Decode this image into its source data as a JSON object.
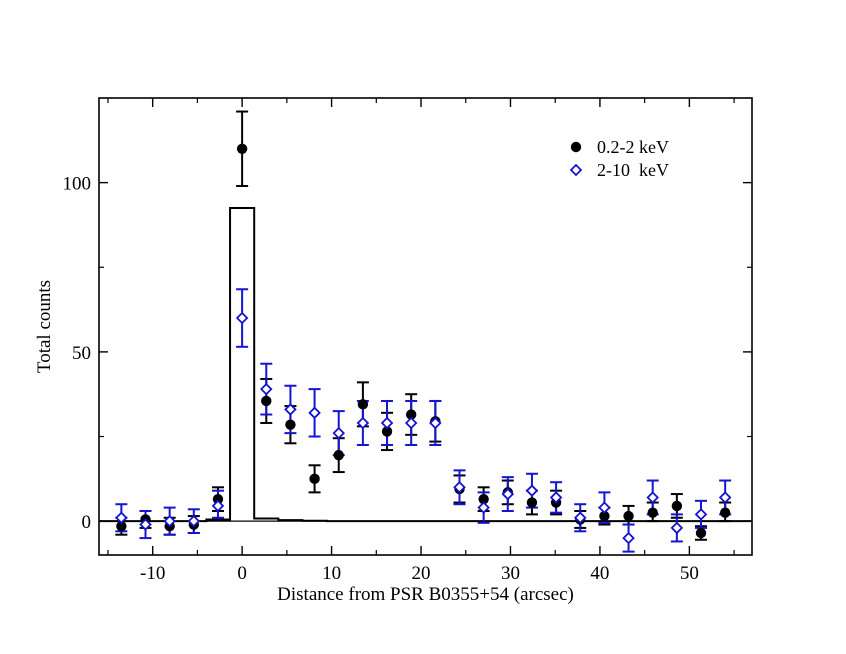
{
  "chart_data": {
    "type": "scatter",
    "title": "",
    "xlabel": "Distance from PSR B0355+54 (arcsec)",
    "ylabel": "Total counts",
    "xlim": [
      -16,
      57
    ],
    "ylim": [
      -10,
      125
    ],
    "xticks": [
      -10,
      0,
      10,
      20,
      30,
      40,
      50
    ],
    "yticks": [
      0,
      50,
      100
    ],
    "xtick_labels": [
      "-10",
      "0",
      "10",
      "20",
      "30",
      "40",
      "50"
    ],
    "ytick_labels": [
      "0",
      "50",
      "100"
    ],
    "legend_position": "top-right",
    "series": [
      {
        "name": "0.2-2 keV",
        "color": "#000000",
        "marker": "filled-circle",
        "points": [
          {
            "x": -13.5,
            "y": -1.5,
            "lo": -4,
            "hi": 1
          },
          {
            "x": -10.8,
            "y": 0.5,
            "lo": -2,
            "hi": 3
          },
          {
            "x": -8.1,
            "y": -1.5,
            "lo": -4,
            "hi": 1
          },
          {
            "x": -5.4,
            "y": -1,
            "lo": -3.5,
            "hi": 1.5
          },
          {
            "x": -2.7,
            "y": 6.5,
            "lo": 3,
            "hi": 10
          },
          {
            "x": 0,
            "y": 110,
            "lo": 99,
            "hi": 121
          },
          {
            "x": 2.7,
            "y": 35.5,
            "lo": 29,
            "hi": 42
          },
          {
            "x": 5.4,
            "y": 28.5,
            "lo": 23,
            "hi": 34
          },
          {
            "x": 8.1,
            "y": 12.5,
            "lo": 8.5,
            "hi": 16.5
          },
          {
            "x": 10.8,
            "y": 19.5,
            "lo": 14.5,
            "hi": 24.5
          },
          {
            "x": 13.5,
            "y": 34.5,
            "lo": 28,
            "hi": 41
          },
          {
            "x": 16.2,
            "y": 26.5,
            "lo": 21,
            "hi": 32
          },
          {
            "x": 18.9,
            "y": 31.5,
            "lo": 25.5,
            "hi": 37.5
          },
          {
            "x": 21.6,
            "y": 29.5,
            "lo": 23.5,
            "hi": 35.5
          },
          {
            "x": 24.3,
            "y": 9.5,
            "lo": 5.5,
            "hi": 13.5
          },
          {
            "x": 27,
            "y": 6.5,
            "lo": 3,
            "hi": 10
          },
          {
            "x": 29.7,
            "y": 8.5,
            "lo": 5,
            "hi": 12
          },
          {
            "x": 32.4,
            "y": 5.5,
            "lo": 2,
            "hi": 9
          },
          {
            "x": 35.1,
            "y": 5.5,
            "lo": 2,
            "hi": 9
          },
          {
            "x": 37.8,
            "y": 0.5,
            "lo": -2,
            "hi": 3
          },
          {
            "x": 40.5,
            "y": 1.5,
            "lo": -1,
            "hi": 4
          },
          {
            "x": 43.2,
            "y": 1.5,
            "lo": -1,
            "hi": 4.5
          },
          {
            "x": 45.9,
            "y": 2.5,
            "lo": 0,
            "hi": 5.5
          },
          {
            "x": 48.6,
            "y": 4.5,
            "lo": 1,
            "hi": 8
          },
          {
            "x": 51.3,
            "y": -3.5,
            "lo": -5.5,
            "hi": -1.5
          },
          {
            "x": 54,
            "y": 2.5,
            "lo": 0,
            "hi": 5.5
          }
        ]
      },
      {
        "name": "2-10  keV",
        "color": "#1414d2",
        "marker": "open-diamond",
        "points": [
          {
            "x": -13.5,
            "y": 1,
            "lo": -3,
            "hi": 5
          },
          {
            "x": -10.8,
            "y": -1,
            "lo": -5,
            "hi": 3
          },
          {
            "x": -8.1,
            "y": 0,
            "lo": -4,
            "hi": 4
          },
          {
            "x": -5.4,
            "y": 0,
            "lo": -3.5,
            "hi": 3.5
          },
          {
            "x": -2.7,
            "y": 4.5,
            "lo": 1,
            "hi": 9
          },
          {
            "x": 0,
            "y": 60,
            "lo": 51.5,
            "hi": 68.5
          },
          {
            "x": 2.7,
            "y": 39,
            "lo": 31.5,
            "hi": 46.5
          },
          {
            "x": 5.4,
            "y": 33,
            "lo": 26,
            "hi": 40
          },
          {
            "x": 8.1,
            "y": 32,
            "lo": 25,
            "hi": 39
          },
          {
            "x": 10.8,
            "y": 26,
            "lo": 19.5,
            "hi": 32.5
          },
          {
            "x": 13.5,
            "y": 29,
            "lo": 22.5,
            "hi": 35.5
          },
          {
            "x": 16.2,
            "y": 29,
            "lo": 22.5,
            "hi": 35.5
          },
          {
            "x": 18.9,
            "y": 29,
            "lo": 22.5,
            "hi": 35.5
          },
          {
            "x": 21.6,
            "y": 29,
            "lo": 22.5,
            "hi": 35.5
          },
          {
            "x": 24.3,
            "y": 10,
            "lo": 5,
            "hi": 15
          },
          {
            "x": 27,
            "y": 4,
            "lo": -0.5,
            "hi": 8.5
          },
          {
            "x": 29.7,
            "y": 8,
            "lo": 3,
            "hi": 13
          },
          {
            "x": 32.4,
            "y": 9,
            "lo": 4,
            "hi": 14
          },
          {
            "x": 35.1,
            "y": 7,
            "lo": 2.5,
            "hi": 11.5
          },
          {
            "x": 37.8,
            "y": 1,
            "lo": -3,
            "hi": 5
          },
          {
            "x": 40.5,
            "y": 4,
            "lo": -0.5,
            "hi": 8.5
          },
          {
            "x": 43.2,
            "y": -5,
            "lo": -9,
            "hi": -1
          },
          {
            "x": 45.9,
            "y": 7,
            "lo": 2,
            "hi": 12
          },
          {
            "x": 48.6,
            "y": -2,
            "lo": -6,
            "hi": 2
          },
          {
            "x": 51.3,
            "y": 2,
            "lo": -2,
            "hi": 6
          },
          {
            "x": 54,
            "y": 7,
            "lo": 2,
            "hi": 12
          }
        ]
      },
      {
        "name": "model histogram",
        "type": "step",
        "color": "#000000",
        "bins": [
          {
            "x0": -16,
            "x1": -4,
            "y": 0
          },
          {
            "x0": -4,
            "x1": -1.35,
            "y": 0.5
          },
          {
            "x0": -1.35,
            "x1": 1.35,
            "y": 92.5
          },
          {
            "x0": 1.35,
            "x1": 4.05,
            "y": 0.8
          },
          {
            "x0": 4.05,
            "x1": 6.75,
            "y": 0.3
          },
          {
            "x0": 6.75,
            "x1": 9.45,
            "y": 0.1
          },
          {
            "x0": 9.45,
            "x1": 57,
            "y": 0
          }
        ]
      }
    ]
  }
}
